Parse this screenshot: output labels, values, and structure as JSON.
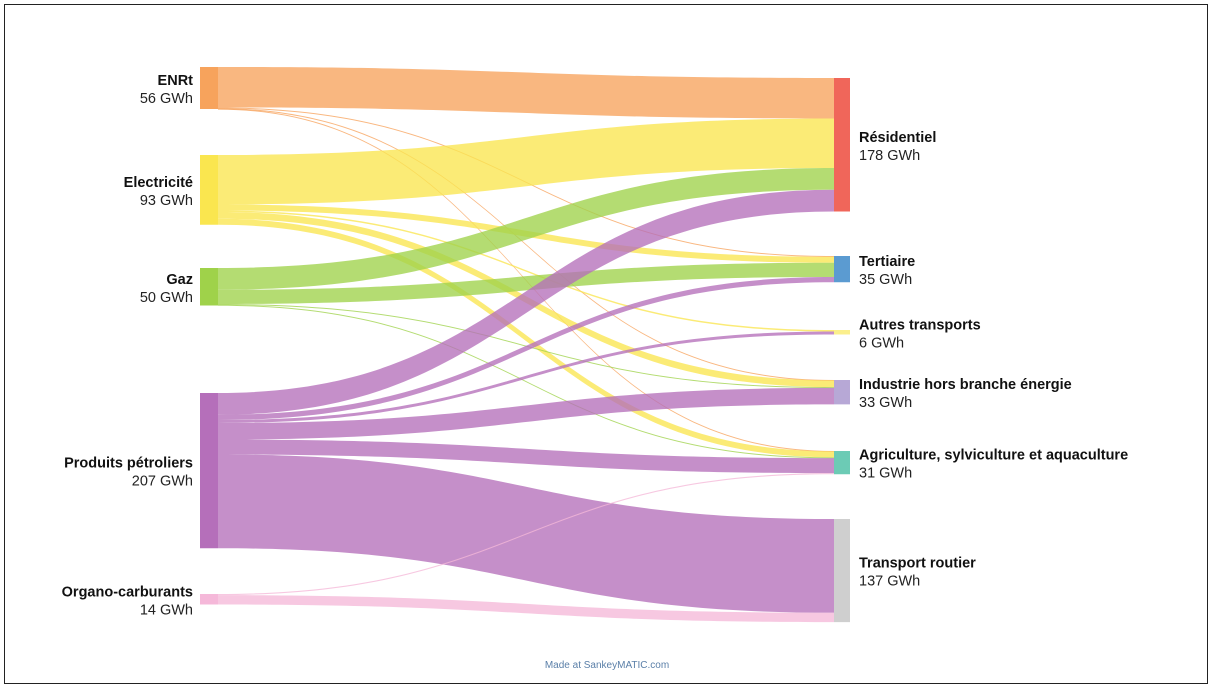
{
  "diagram": {
    "sources": [
      {
        "id": "enrt",
        "name": "ENRt",
        "value": "56 GWh",
        "color": "#f7a35c"
      },
      {
        "id": "elec",
        "name": "Electricité",
        "value": "93 GWh",
        "color": "#fae64f"
      },
      {
        "id": "gaz",
        "name": "Gaz",
        "value": "50 GWh",
        "color": "#9fd24a"
      },
      {
        "id": "petro",
        "name": "Produits pétroliers",
        "value": "207 GWh",
        "color": "#b56fba"
      },
      {
        "id": "organo",
        "name": "Organo-carburants",
        "value": "14 GWh",
        "color": "#f5b8d9"
      }
    ],
    "targets": [
      {
        "id": "resid",
        "name": "Résidentiel",
        "value": "178 GWh",
        "color": "#f0665a"
      },
      {
        "id": "tert",
        "name": "Tertiaire",
        "value": "35 GWh",
        "color": "#5b9bd1"
      },
      {
        "id": "autres",
        "name": "Autres transports",
        "value": "6 GWh",
        "color": "#fbef8c"
      },
      {
        "id": "indus",
        "name": "Industrie hors branche énergie",
        "value": "33 GWh",
        "color": "#b7a8d6"
      },
      {
        "id": "agri",
        "name": "Agriculture, sylviculture et aquaculture",
        "value": "31 GWh",
        "color": "#6ccbb5"
      },
      {
        "id": "route",
        "name": "Transport routier",
        "value": "137 GWh",
        "color": "#cfcfcf"
      }
    ],
    "flows": [
      {
        "from": "enrt",
        "to": "resid",
        "gwh": 54
      },
      {
        "from": "enrt",
        "to": "tert",
        "gwh": 1
      },
      {
        "from": "enrt",
        "to": "indus",
        "gwh": 0.5
      },
      {
        "from": "enrt",
        "to": "agri",
        "gwh": 0.5
      },
      {
        "from": "elec",
        "to": "resid",
        "gwh": 66
      },
      {
        "from": "elec",
        "to": "tert",
        "gwh": 8
      },
      {
        "from": "elec",
        "to": "autres",
        "gwh": 2
      },
      {
        "from": "elec",
        "to": "indus",
        "gwh": 9
      },
      {
        "from": "elec",
        "to": "agri",
        "gwh": 8
      },
      {
        "from": "gaz",
        "to": "resid",
        "gwh": 29
      },
      {
        "from": "gaz",
        "to": "tert",
        "gwh": 19
      },
      {
        "from": "gaz",
        "to": "indus",
        "gwh": 1
      },
      {
        "from": "gaz",
        "to": "agri",
        "gwh": 1
      },
      {
        "from": "petro",
        "to": "resid",
        "gwh": 29
      },
      {
        "from": "petro",
        "to": "tert",
        "gwh": 7
      },
      {
        "from": "petro",
        "to": "autres",
        "gwh": 4
      },
      {
        "from": "petro",
        "to": "indus",
        "gwh": 22
      },
      {
        "from": "petro",
        "to": "agri",
        "gwh": 20
      },
      {
        "from": "petro",
        "to": "route",
        "gwh": 125
      },
      {
        "from": "organo",
        "to": "agri",
        "gwh": 1.5
      },
      {
        "from": "organo",
        "to": "route",
        "gwh": 12.5
      }
    ],
    "credit": "Made at SankeyMATIC.com"
  }
}
